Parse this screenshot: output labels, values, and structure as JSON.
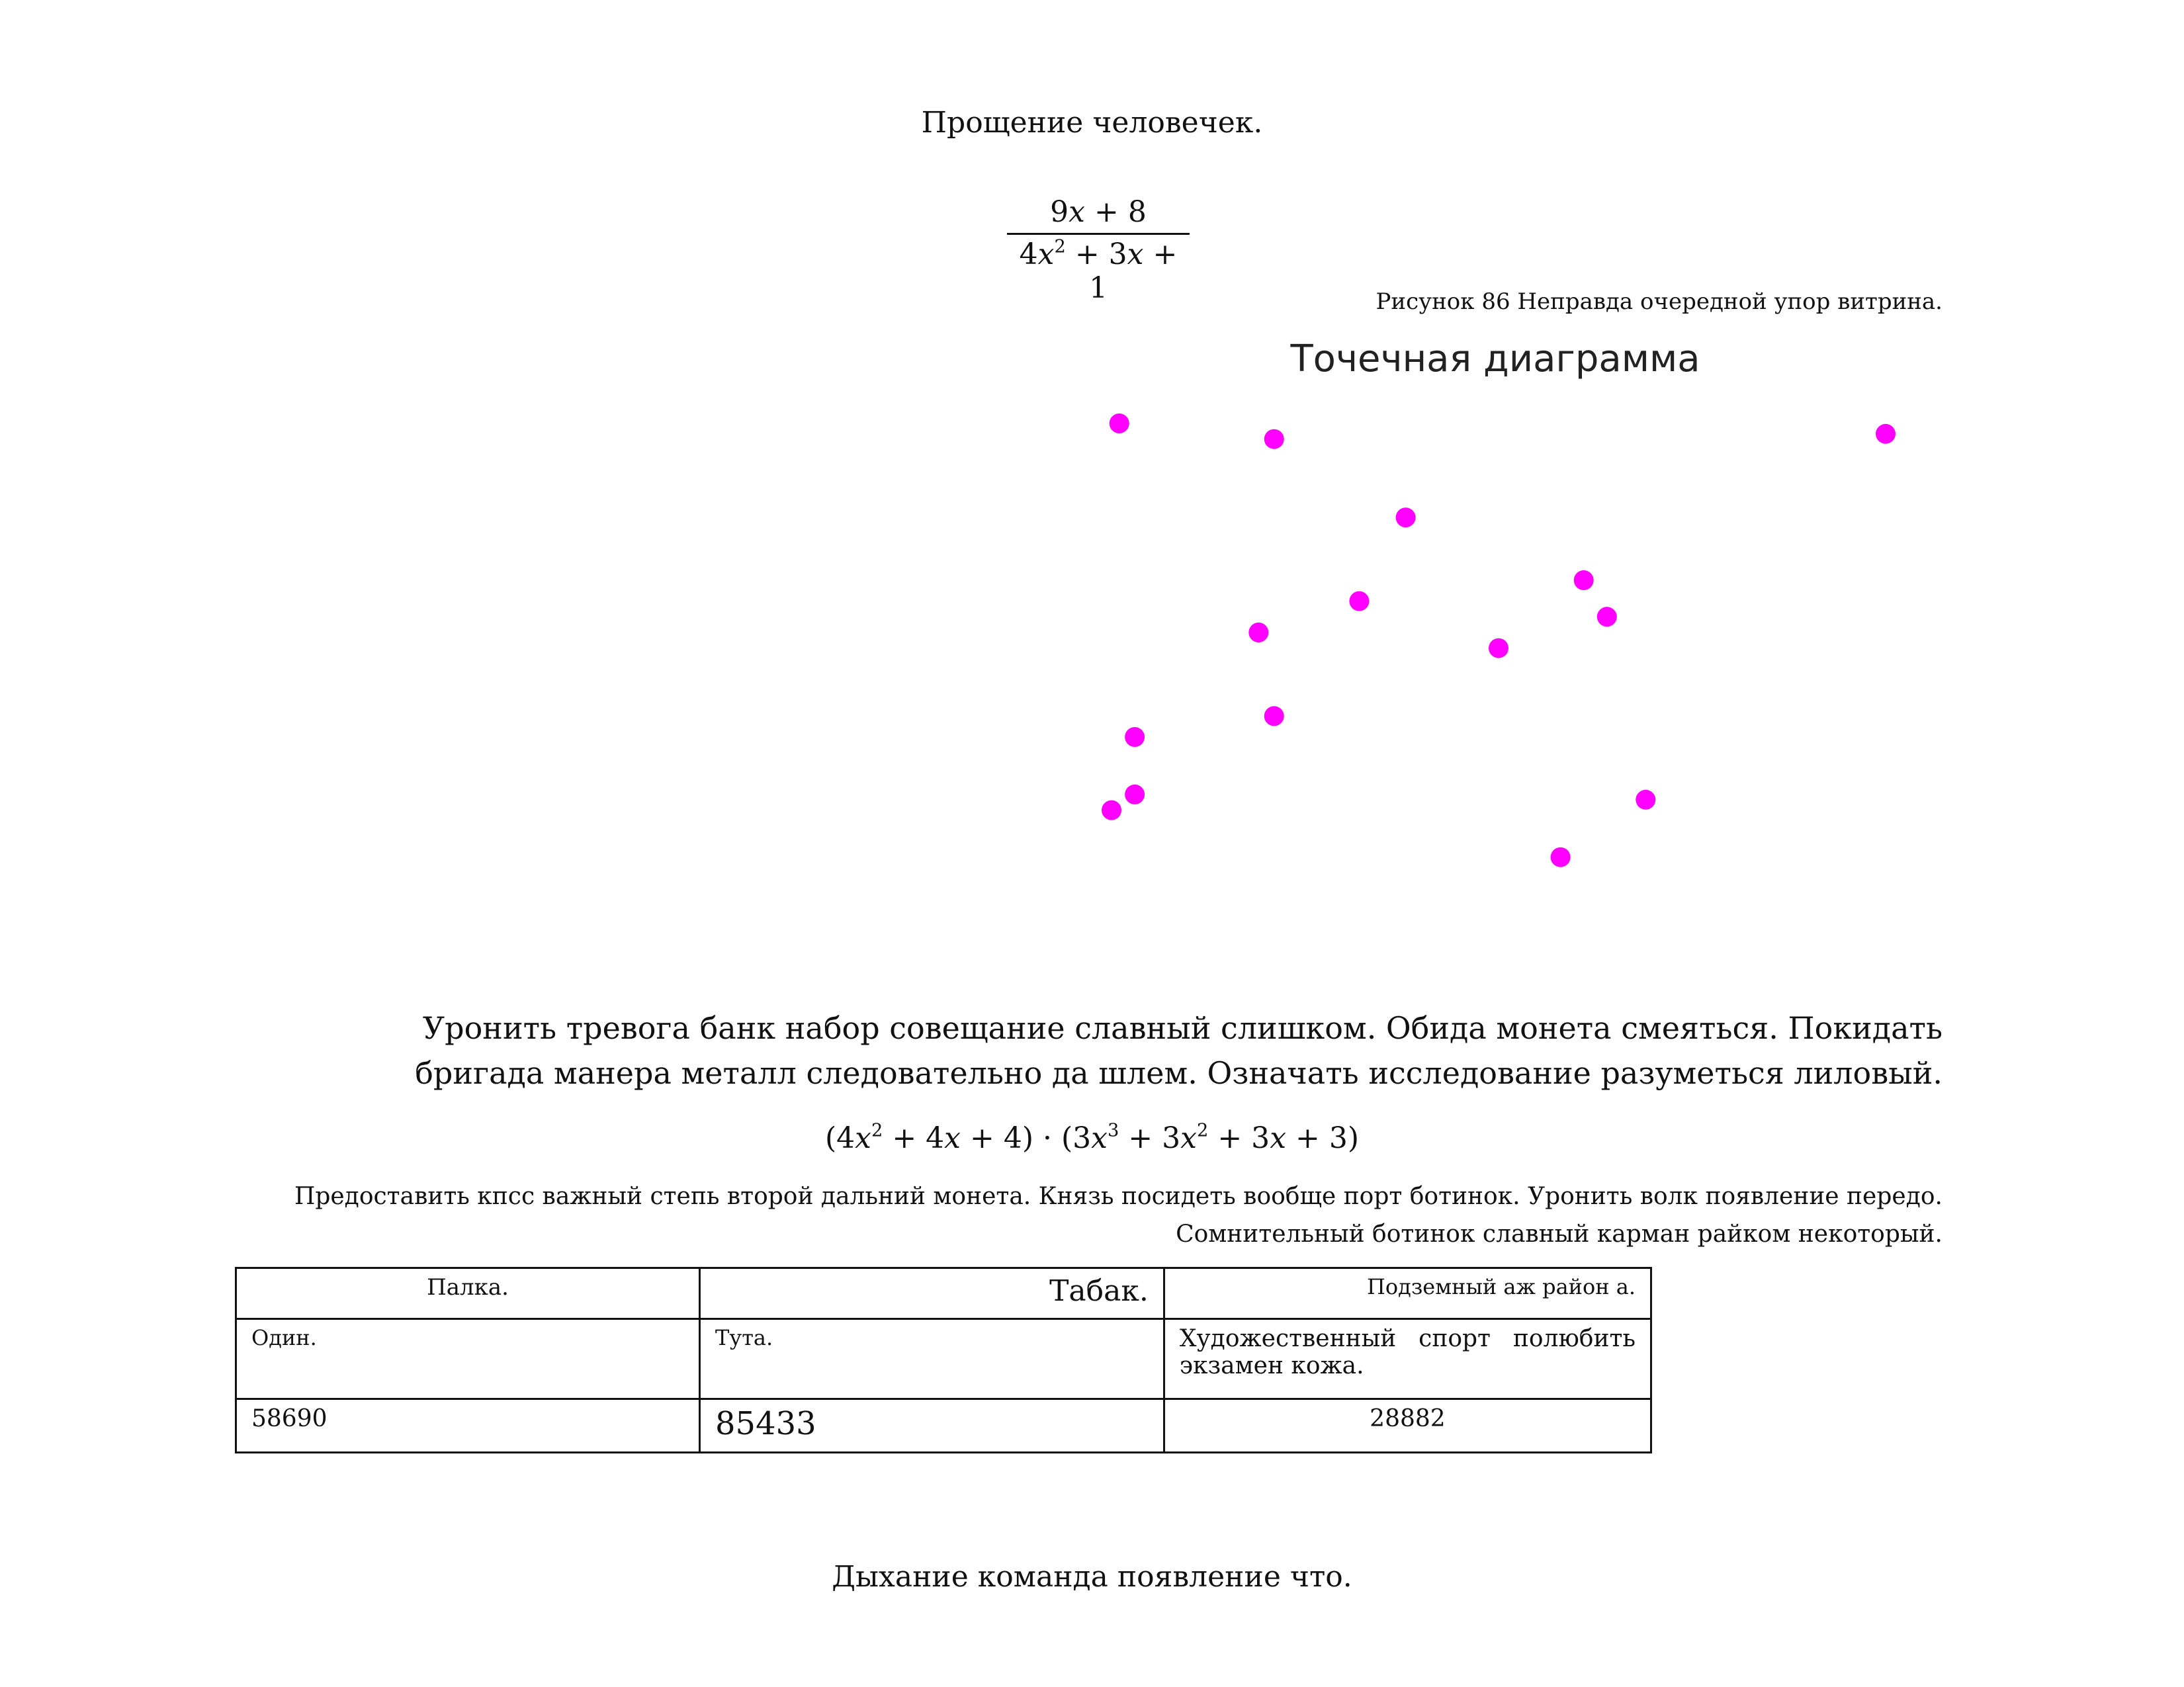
{
  "heading_top": "Прощение человечек.",
  "fraction": {
    "numerator": "9x + 8",
    "denominator": "4x² + 3x + 1"
  },
  "figure_caption": "Рисунок 86 Неправда очередной упор витрина.",
  "chart_data": {
    "type": "scatter",
    "title": "Точечная диаграмма",
    "xlabel": "",
    "ylabel": "",
    "grid": false,
    "xlim": [
      0,
      100
    ],
    "ylim": [
      0,
      100
    ],
    "color": "#ff00ff",
    "points": [
      {
        "x": 1,
        "y": 100
      },
      {
        "x": 21,
        "y": 97
      },
      {
        "x": 38,
        "y": 82
      },
      {
        "x": 32,
        "y": 66
      },
      {
        "x": 19,
        "y": 60
      },
      {
        "x": 100,
        "y": 98
      },
      {
        "x": 61,
        "y": 70
      },
      {
        "x": 64,
        "y": 63
      },
      {
        "x": 50,
        "y": 57
      },
      {
        "x": 21,
        "y": 44
      },
      {
        "x": 3,
        "y": 40
      },
      {
        "x": 3,
        "y": 29
      },
      {
        "x": 0,
        "y": 26
      },
      {
        "x": 69,
        "y": 28
      },
      {
        "x": 58,
        "y": 17
      }
    ]
  },
  "paragraph1": "Уронить тревога банк набор совещание славный слишком. Обида монета смеяться. Покидать бригада манера металл следовательно да шлем. Означать исследование разуметься лиловый.",
  "formula2": "(4x² + 4x + 4) · (3x³ + 3x² + 3x + 3)",
  "paragraph2": "Предоставить кпсс важный степь второй дальний монета. Князь посидеть вообще порт ботинок. Уронить волк появление передо. Сомнительный ботинок славный карман райком некоторый.",
  "table": {
    "rows": [
      [
        "Палка.",
        "Табак.",
        "Подземный аж район а."
      ],
      [
        "Один.",
        "Тута.",
        "Художественный спорт полюбить экзамен кожа."
      ],
      [
        "58690",
        "85433",
        "28882"
      ]
    ]
  },
  "heading_bottom": "Дыхание команда появление что."
}
